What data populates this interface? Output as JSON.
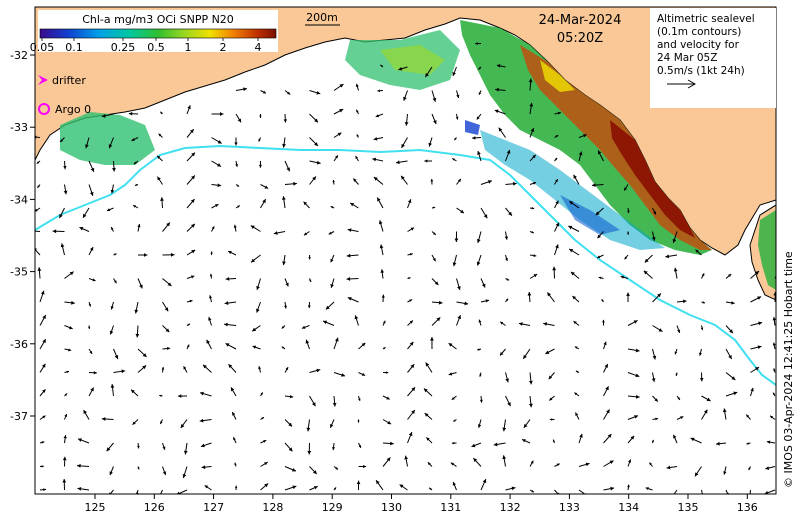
{
  "colorbar": {
    "title": "Chl-a mg/m3 OCi SNPP N20",
    "ticks": [
      "0.05",
      "0.1",
      "0.25",
      "0.5",
      "1",
      "2",
      "4"
    ]
  },
  "scale": {
    "label": "200m"
  },
  "date": {
    "day": "24-Mar-2024",
    "time": "05:20Z"
  },
  "info": {
    "lines": [
      "Altimetric sealevel",
      "(0.1m contours)",
      "and velocity for",
      "24 Mar 05Z",
      "0.5m/s (1kt 24h)"
    ]
  },
  "legend": {
    "drifter": "drifter",
    "argo": "Argo 0"
  },
  "credit": "© IMOS 03-Apr-2024 12:41:25 Hobart time",
  "axes": {
    "x_ticks": [
      "125",
      "126",
      "127",
      "128",
      "129",
      "130",
      "131",
      "132",
      "133",
      "134",
      "135",
      "136"
    ],
    "y_ticks": [
      "-32",
      "-33",
      "-34",
      "-35",
      "-36",
      "-37"
    ]
  },
  "colors": {
    "land": "#f9c896",
    "contour_200m": "#40e0f0",
    "drifter": "#ff00ff",
    "argo": "#ff00ff"
  }
}
